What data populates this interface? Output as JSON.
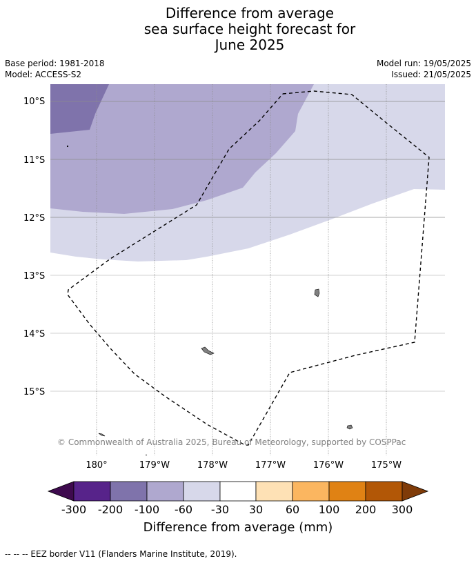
{
  "title": {
    "line1": "Difference from average",
    "line2": "sea surface height forecast for",
    "line3": "June 2025"
  },
  "meta": {
    "base_period": "Base period: 1981-2018",
    "model": "Model: ACCESS-S2",
    "model_run": "Model run: 19/05/2025",
    "issued": "Issued: 21/05/2025"
  },
  "map": {
    "lat_labels": [
      "10°S",
      "11°S",
      "12°S",
      "13°S",
      "14°S",
      "15°S"
    ],
    "lon_labels": [
      "180°",
      "179°W",
      "178°W",
      "177°W",
      "176°W",
      "175°W"
    ],
    "copyright": "© Commonwealth of Australia 2025, Bureau of Meteorology, supported by COSPPac",
    "colors": {
      "minus_200_100": "#7f73ab",
      "minus_100_60": "#afa8cf",
      "minus_60_30": "#d7d8ea",
      "near_zero": "#ffffff",
      "land": "#808080",
      "eez": "#000000"
    }
  },
  "colorbar": {
    "ticks": [
      "-300",
      "-200",
      "-100",
      "-60",
      "-30",
      "30",
      "60",
      "100",
      "200",
      "300"
    ],
    "colors": [
      "#3e0a4e",
      "#57238a",
      "#7f73ab",
      "#afa8cf",
      "#d7d8ea",
      "#ffffff",
      "#fee1b5",
      "#fbb660",
      "#e08214",
      "#b25706",
      "#7f3b08"
    ],
    "label": "Difference from average (mm)"
  },
  "footer": {
    "legend": "--  --  -- EEZ border V11 (Flanders Marine Institute, 2019)."
  }
}
